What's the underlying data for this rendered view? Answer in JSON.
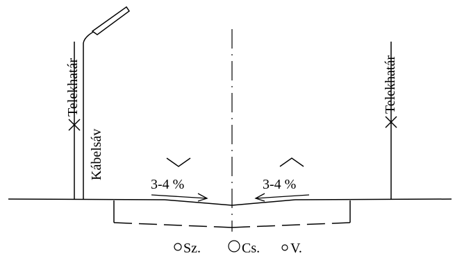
{
  "labels": {
    "left_boundary": "Telekhatár",
    "right_boundary": "Telekhatár",
    "cable_strip": "Kábelsáv",
    "slope_left": "3-4 %",
    "slope_right": "3-4 %"
  },
  "utilities": [
    {
      "symbol": "○",
      "label": "Sz."
    },
    {
      "symbol": "○",
      "label": "Cs."
    },
    {
      "symbol": "○",
      "label": "V."
    }
  ],
  "colors": {
    "line": "#000000",
    "background": "#ffffff"
  },
  "icons": {
    "boundary_marker": "cross-mark-icon",
    "crown_left": "chevron-down-icon",
    "crown_right": "chevron-up-icon",
    "arrow": "arrow-icon"
  }
}
